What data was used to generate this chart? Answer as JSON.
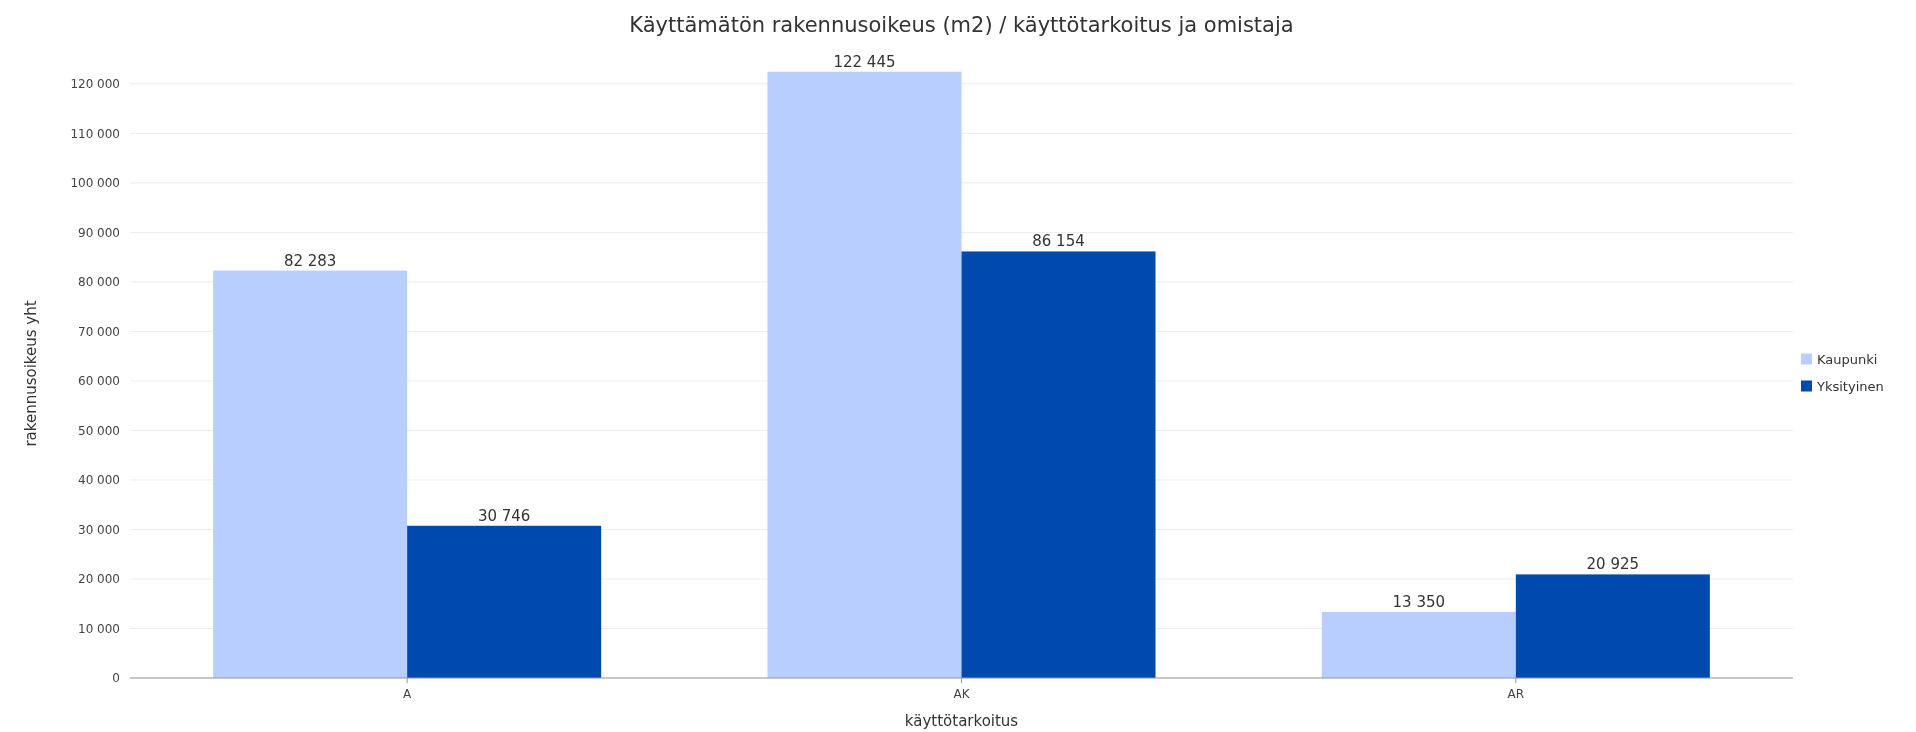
{
  "chart_data": {
    "type": "bar",
    "title": "Käyttämätön rakennusoikeus (m2) / käyttötarkoitus ja omistaja",
    "xlabel": "käyttötarkoitus",
    "ylabel": "rakennusoikeus yht",
    "categories": [
      "A",
      "AK",
      "AR"
    ],
    "series": [
      {
        "name": "Kaupunki",
        "color": "#b7ceff",
        "values": [
          82283,
          122445,
          13350
        ],
        "value_labels": [
          "82 283",
          "122 445",
          "13 350"
        ]
      },
      {
        "name": "Yksityinen",
        "color": "#004aad",
        "values": [
          30746,
          86154,
          20925
        ],
        "value_labels": [
          "30 746",
          "86 154",
          "20 925"
        ]
      }
    ],
    "ylim": [
      0,
      123000
    ],
    "yticks": [
      0,
      {
        "value": 10000,
        "label": "10 000"
      },
      {
        "value": 20000,
        "label": "20 000"
      },
      {
        "value": 30000,
        "label": "30 000"
      },
      {
        "value": 40000,
        "label": "40 000"
      },
      {
        "value": 50000,
        "label": "50 000"
      },
      {
        "value": 60000,
        "label": "60 000"
      },
      {
        "value": 70000,
        "label": "70 000"
      },
      {
        "value": 80000,
        "label": "80 000"
      },
      {
        "value": 90000,
        "label": "90 000"
      },
      {
        "value": 100000,
        "label": "100 000"
      },
      {
        "value": 110000,
        "label": "110 000"
      },
      {
        "value": 120000,
        "label": "120 000"
      }
    ],
    "grid": "y",
    "legend": "right"
  }
}
